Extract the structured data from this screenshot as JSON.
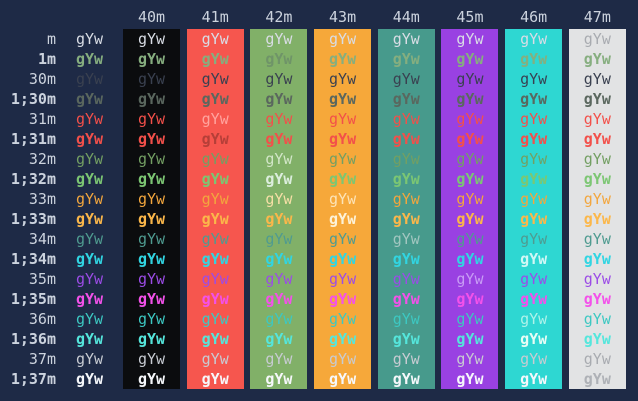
{
  "app": {
    "type": "terminal-output",
    "description": "ANSI escape-code color test grid (foreground rows vs background columns)"
  },
  "terminal": {
    "bg": "#1e2a46",
    "label_color": "#ccd3de",
    "sample_text": "gYw",
    "columns": [
      {
        "label": "40m",
        "bg": "#0b0c0e"
      },
      {
        "label": "41m",
        "bg": "#f6564e"
      },
      {
        "label": "42m",
        "bg": "#81b068"
      },
      {
        "label": "43m",
        "bg": "#f6a83a"
      },
      {
        "label": "44m",
        "bg": "#479a8c"
      },
      {
        "label": "45m",
        "bg": "#9941e2"
      },
      {
        "label": "46m",
        "bg": "#2ed7d2"
      },
      {
        "label": "47m",
        "bg": "#e2e3e4"
      }
    ],
    "rows": [
      {
        "label": "m",
        "fg": "#d9dde5",
        "bold": false
      },
      {
        "label": "1m",
        "fg": "#86ae7f",
        "bold": true
      },
      {
        "label": "30m",
        "fg": "#3a4150",
        "bold": false
      },
      {
        "label": "1;30m",
        "fg": "#5a675e",
        "bold": true
      },
      {
        "label": "31m",
        "fg": "#f2504a",
        "bold": false
      },
      {
        "label": "1;31m",
        "fg": "#f2504a",
        "bold": true
      },
      {
        "label": "32m",
        "fg": "#739f63",
        "bold": false
      },
      {
        "label": "1;32m",
        "fg": "#7cc673",
        "bold": true
      },
      {
        "label": "33m",
        "fg": "#f2a63e",
        "bold": false
      },
      {
        "label": "1;33m",
        "fg": "#fbb74a",
        "bold": true
      },
      {
        "label": "34m",
        "fg": "#4f9b90",
        "bold": false
      },
      {
        "label": "1;34m",
        "fg": "#31d5e2",
        "bold": true
      },
      {
        "label": "35m",
        "fg": "#9c4ce6",
        "bold": false
      },
      {
        "label": "1;35m",
        "fg": "#f351ea",
        "bold": true
      },
      {
        "label": "36m",
        "fg": "#3dc8c2",
        "bold": false
      },
      {
        "label": "1;36m",
        "fg": "#55e6dc",
        "bold": true
      },
      {
        "label": "37m",
        "fg": "#c7cbd2",
        "bold": false
      },
      {
        "label": "1;37m",
        "fg": "#f6f8fb",
        "bold": true
      }
    ],
    "contrast_overrides": {
      "m|47m": "#a8abb0",
      "1m|42m": "#6f9468",
      "31m|41m": "#ffa49e",
      "1;31m|41m": "#b53f38",
      "32m|42m": "#d2e6c8",
      "1;32m|42m": "#dceede",
      "33m|42m": "#f6dfa6",
      "33m|43m": "#fce4b8",
      "1;33m|43m": "#fdf2d8",
      "34m|44m": "#a2c6c0",
      "35m|45m": "#c79df4",
      "1;34m|46m": "#d2f7f5",
      "36m|46m": "#aef1ea",
      "1;36m|46m": "#e8fcf6",
      "37m|47m": "#a8abb0",
      "1;37m|47m": "#aeb1b6"
    }
  }
}
